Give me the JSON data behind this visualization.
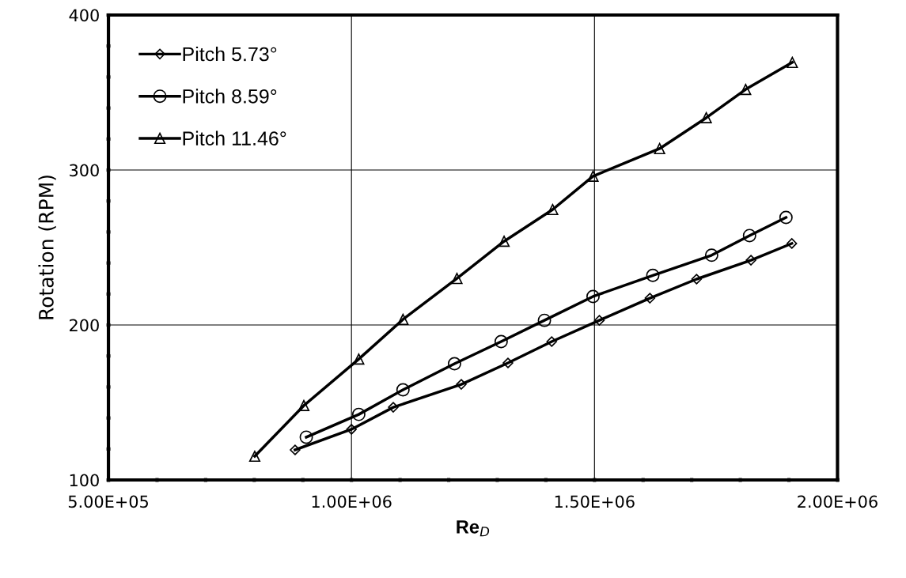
{
  "chart_data": {
    "type": "line",
    "xlabel": "Re$_{D}$",
    "ylabel": "Rotation (RPM)",
    "xlim": [
      500000,
      2000000
    ],
    "ylim": [
      100,
      400
    ],
    "xticks": [
      {
        "value": 500000,
        "label": "5.00E+05"
      },
      {
        "value": 600000,
        "label": null
      },
      {
        "value": 700000,
        "label": null
      },
      {
        "value": 800000,
        "label": null
      },
      {
        "value": 900000,
        "label": null
      },
      {
        "value": 1000000,
        "label": "1.00E+06"
      },
      {
        "value": 1100000,
        "label": null
      },
      {
        "value": 1200000,
        "label": null
      },
      {
        "value": 1300000,
        "label": null
      },
      {
        "value": 1400000,
        "label": null
      },
      {
        "value": 1500000,
        "label": "1.50E+06"
      },
      {
        "value": 1600000,
        "label": null
      },
      {
        "value": 1700000,
        "label": null
      },
      {
        "value": 1800000,
        "label": null
      },
      {
        "value": 1900000,
        "label": null
      },
      {
        "value": 2000000,
        "label": "2.00E+06"
      }
    ],
    "yticks": [
      100,
      {
        "value": 120,
        "label": null
      },
      {
        "value": 140,
        "label": null
      },
      {
        "value": 160,
        "label": null
      },
      {
        "value": 180,
        "label": null
      },
      200,
      {
        "value": 220,
        "label": null
      },
      {
        "value": 240,
        "label": null
      },
      {
        "value": 260,
        "label": null
      },
      {
        "value": 280,
        "label": null
      },
      300,
      {
        "value": 320,
        "label": null
      },
      {
        "value": 340,
        "label": null
      },
      {
        "value": 360,
        "label": null
      },
      {
        "value": 380,
        "label": null
      },
      400
    ],
    "grid": true,
    "legend": "top left",
    "line_style": "solid",
    "series": [
      {
        "name": "Pitch 5.73°",
        "color": "#000000",
        "marker": "diamond",
        "x": [
          884000,
          1000000,
          1086000,
          1226000,
          1322000,
          1412000,
          1510000,
          1614000,
          1710000,
          1822000,
          1906000
        ],
        "values": [
          119.4,
          132.7,
          146.9,
          161.7,
          175.5,
          189.3,
          203,
          217.3,
          229.6,
          241.8,
          252.6
        ]
      },
      {
        "name": "Pitch 8.59°",
        "color": "#000000",
        "marker": "circle",
        "x": [
          907000,
          1015000,
          1106000,
          1212000,
          1308000,
          1397000,
          1497000,
          1620000,
          1741000,
          1819000,
          1894000
        ],
        "values": [
          127.6,
          142.3,
          158.2,
          175,
          189.3,
          203,
          218.4,
          232,
          245,
          257.7,
          269.4
        ]
      },
      {
        "name": "Pitch 11.46°",
        "color": "#000000",
        "marker": "triangle",
        "x": [
          801000,
          902000,
          1015000,
          1106000,
          1217000,
          1314000,
          1414000,
          1497000,
          1634000,
          1730000,
          1811000,
          1907000
        ],
        "values": [
          115.3,
          148,
          178,
          203.6,
          230,
          254,
          274.5,
          296,
          313.8,
          333.7,
          352,
          369.4
        ]
      }
    ]
  }
}
